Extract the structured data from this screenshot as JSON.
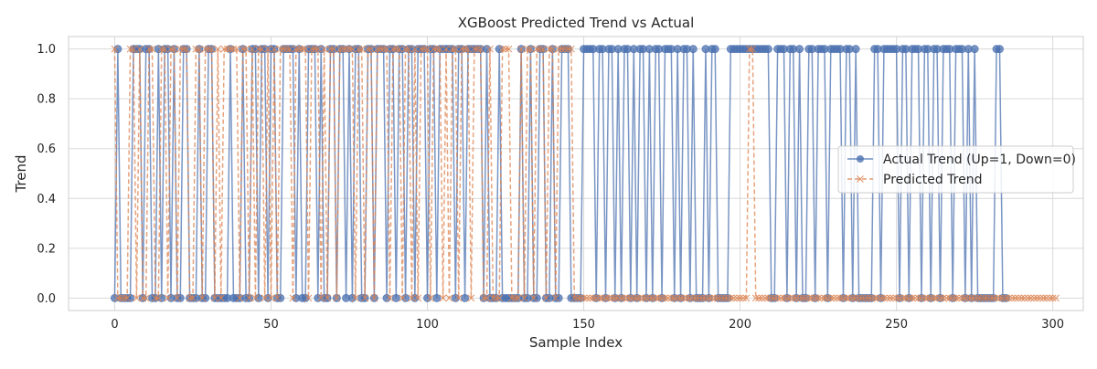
{
  "chart_data": {
    "type": "line",
    "title": "XGBoost Predicted Trend vs Actual",
    "xlabel": "Sample Index",
    "ylabel": "Trend",
    "xlim": [
      -14.75,
      309.75
    ],
    "ylim": [
      -0.05,
      1.05
    ],
    "x_ticks": [
      0,
      50,
      100,
      150,
      200,
      250,
      300
    ],
    "y_ticks": [
      0.0,
      0.2,
      0.4,
      0.6,
      0.8,
      1.0
    ],
    "x_tick_labels": [
      "0",
      "50",
      "100",
      "150",
      "200",
      "250",
      "300"
    ],
    "y_tick_labels": [
      "0.0",
      "0.2",
      "0.4",
      "0.6",
      "0.8",
      "1.0"
    ],
    "grid": true,
    "legend_position": "center-right",
    "series": [
      {
        "name": "Actual Trend (Up=1, Down=0)",
        "color": "#4c72b0",
        "marker": "circle",
        "linestyle": "solid",
        "values": [
          0,
          1,
          0,
          0,
          0,
          0,
          1,
          1,
          1,
          0,
          1,
          1,
          0,
          0,
          1,
          0,
          1,
          1,
          0,
          1,
          0,
          0,
          1,
          1,
          0,
          0,
          0,
          1,
          0,
          0,
          1,
          1,
          0,
          0,
          0,
          0,
          0,
          1,
          0,
          0,
          0,
          1,
          0,
          0,
          1,
          1,
          0,
          1,
          1,
          0,
          1,
          1,
          0,
          0,
          1,
          1,
          1,
          1,
          0,
          1,
          0,
          0,
          1,
          1,
          1,
          0,
          1,
          0,
          0,
          1,
          1,
          0,
          1,
          1,
          0,
          1,
          0,
          1,
          1,
          0,
          0,
          1,
          1,
          0,
          1,
          1,
          1,
          0,
          1,
          1,
          0,
          1,
          1,
          0,
          1,
          1,
          0,
          1,
          1,
          1,
          0,
          1,
          1,
          0,
          1,
          1,
          1,
          1,
          1,
          0,
          1,
          1,
          0,
          1,
          1,
          1,
          1,
          1,
          0,
          1,
          0,
          0,
          0,
          1,
          0,
          0,
          0,
          0,
          0,
          0,
          1,
          0,
          0,
          1,
          0,
          0,
          1,
          1,
          0,
          0,
          1,
          0,
          0,
          1,
          1,
          1,
          0,
          0,
          0,
          0,
          1,
          1,
          1,
          1,
          0,
          1,
          1,
          0,
          1,
          1,
          0,
          1,
          0,
          1,
          1,
          0,
          1,
          0,
          1,
          1,
          0,
          1,
          0,
          1,
          1,
          0,
          1,
          1,
          1,
          0,
          1,
          0,
          1,
          1,
          0,
          1,
          0,
          0,
          0,
          1,
          0,
          1,
          1,
          0,
          0,
          0,
          0,
          1,
          1,
          1,
          1,
          1,
          1,
          1,
          1,
          1,
          1,
          1,
          1,
          1,
          0,
          0,
          1,
          1,
          1,
          0,
          1,
          1,
          0,
          1,
          0,
          0,
          1,
          1,
          0,
          1,
          1,
          1,
          0,
          1,
          1,
          1,
          1,
          0,
          1,
          1,
          0,
          1,
          0,
          0,
          0,
          0,
          0,
          1,
          1,
          0,
          1,
          1,
          1,
          1,
          1,
          0,
          1,
          1,
          0,
          1,
          1,
          1,
          0,
          1,
          1,
          0,
          1,
          1,
          0,
          1,
          1,
          1,
          0,
          1,
          1,
          1,
          0,
          1,
          0,
          1,
          0,
          0,
          0,
          0,
          0,
          0,
          1,
          1,
          0,
          0
        ]
      },
      {
        "name": "Predicted Trend",
        "color": "#dd8452",
        "marker": "x",
        "linestyle": "dashed",
        "values": [
          1,
          0,
          0,
          0,
          0,
          1,
          1,
          0,
          1,
          0,
          0,
          1,
          1,
          0,
          0,
          1,
          1,
          0,
          1,
          1,
          0,
          1,
          1,
          1,
          0,
          0,
          1,
          1,
          0,
          1,
          1,
          1,
          0,
          1,
          0,
          1,
          1,
          1,
          1,
          1,
          0,
          1,
          1,
          0,
          1,
          0,
          1,
          1,
          0,
          1,
          0,
          1,
          0,
          1,
          1,
          1,
          1,
          0,
          1,
          1,
          1,
          1,
          0,
          1,
          1,
          1,
          0,
          1,
          0,
          1,
          1,
          0,
          1,
          1,
          1,
          1,
          1,
          0,
          1,
          1,
          0,
          1,
          1,
          0,
          1,
          1,
          1,
          1,
          0,
          1,
          1,
          1,
          0,
          1,
          1,
          0,
          1,
          0,
          1,
          1,
          1,
          0,
          1,
          1,
          1,
          0,
          1,
          0,
          1,
          1,
          0,
          1,
          1,
          1,
          0,
          1,
          1,
          1,
          0,
          0,
          1,
          0,
          0,
          0,
          1,
          1,
          1,
          0,
          0,
          0,
          1,
          0,
          1,
          1,
          0,
          1,
          1,
          1,
          0,
          1,
          1,
          0,
          1,
          1,
          1,
          1,
          1,
          0,
          0,
          0,
          0,
          0,
          0,
          0,
          0,
          0,
          0,
          0,
          0,
          0,
          0,
          0,
          0,
          0,
          0,
          0,
          0,
          0,
          0,
          0,
          0,
          0,
          0,
          0,
          0,
          0,
          0,
          0,
          0,
          0,
          0,
          0,
          0,
          0,
          0,
          0,
          0,
          0,
          0,
          0,
          0,
          0,
          0,
          0,
          0,
          0,
          0,
          0,
          0,
          0,
          0,
          0,
          0,
          1,
          1,
          0,
          0,
          0,
          0,
          0,
          0,
          0,
          0,
          0,
          0,
          0,
          0,
          0,
          0,
          0,
          0,
          0,
          0,
          0,
          0,
          0,
          0,
          0,
          0,
          0,
          0,
          0,
          0,
          0,
          0,
          0,
          0,
          0,
          0,
          0,
          0,
          0,
          0,
          0,
          0,
          0,
          0,
          0,
          0,
          0,
          0,
          0,
          0,
          0,
          0,
          0,
          0,
          0,
          0,
          0,
          0,
          0,
          0,
          0,
          0,
          0,
          0,
          0,
          0,
          0,
          0,
          0,
          0,
          0,
          0,
          0,
          0,
          0,
          0,
          0,
          0,
          0,
          0,
          0,
          0,
          0,
          0,
          0,
          0,
          0,
          0,
          0,
          0,
          0,
          0,
          0,
          0,
          0,
          0,
          0,
          0,
          0
        ]
      }
    ]
  }
}
